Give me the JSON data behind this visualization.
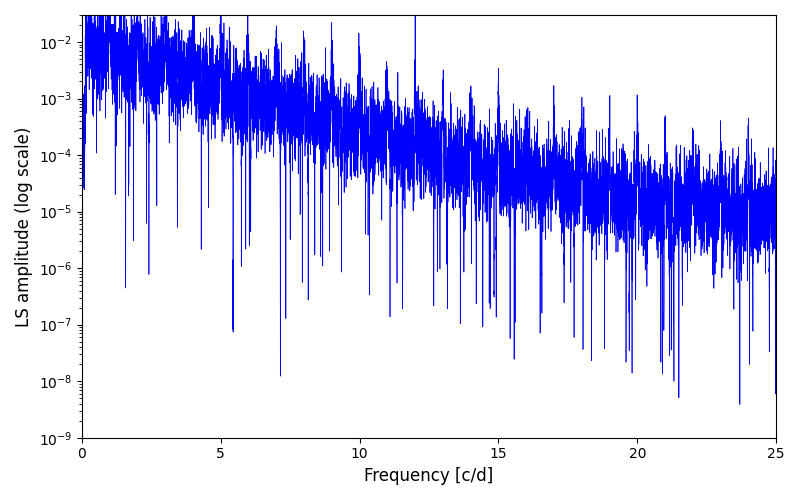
{
  "xlabel": "Frequency [c/d]",
  "ylabel": "LS amplitude (log scale)",
  "xlim": [
    0,
    25
  ],
  "ylim": [
    1e-09,
    0.03
  ],
  "line_color": "#0000ff",
  "line_width": 0.5,
  "background_color": "#ffffff",
  "figsize": [
    8.0,
    5.0
  ],
  "dpi": 100,
  "seed": 7777,
  "n_points": 10000,
  "freq_max": 25.0,
  "yticks": [
    1e-09,
    1e-08,
    1e-07,
    1e-06,
    1e-05,
    0.0001,
    0.001,
    0.01
  ]
}
